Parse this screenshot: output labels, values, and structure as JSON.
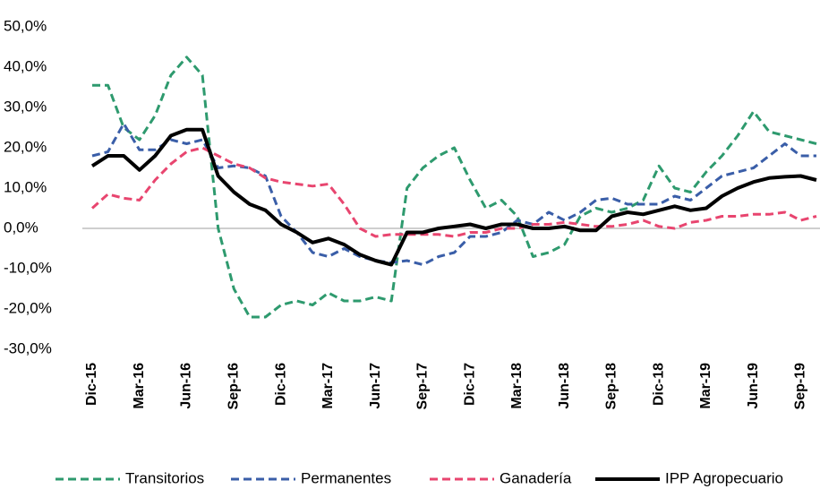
{
  "chart_data": {
    "type": "line",
    "categories": [
      "Dic-15",
      null,
      null,
      "Mar-16",
      null,
      null,
      "Jun-16",
      null,
      null,
      "Sep-16",
      null,
      null,
      "Dic-16",
      null,
      null,
      "Mar-17",
      null,
      null,
      "Jun-17",
      null,
      null,
      "Sep-17",
      null,
      null,
      "Dic-17",
      null,
      null,
      "Mar-18",
      null,
      null,
      "Jun-18",
      null,
      null,
      "Sep-18",
      null,
      null,
      "Dic-18",
      null,
      null,
      "Mar-19",
      null,
      null,
      "Jun-19",
      null,
      null,
      "Sep-19",
      null
    ],
    "series": [
      {
        "name": "Transitorios",
        "color": "#2e9a6e",
        "dashed": true,
        "values": [
          35.5,
          35.5,
          25,
          22,
          28,
          38,
          42.5,
          38,
          0,
          -15,
          -22,
          -22,
          -19,
          -18,
          -19,
          -16,
          -18,
          -18,
          -17,
          -18,
          10,
          15,
          18,
          20,
          12,
          5,
          7,
          3,
          -7,
          -6,
          -4,
          3,
          5,
          4,
          5,
          7,
          15.5,
          10,
          9,
          14,
          18,
          23,
          29,
          24,
          23,
          22,
          21
        ]
      },
      {
        "name": "Permanentes",
        "color": "#3a5ea8",
        "dashed": true,
        "values": [
          18,
          19,
          26,
          19.5,
          19.5,
          22,
          21,
          22,
          15,
          15.5,
          15,
          13,
          3,
          -1,
          -6,
          -7,
          -5,
          -7,
          -8,
          -8.5,
          -8,
          -9,
          -7,
          -6,
          -2,
          -2,
          -1,
          2,
          1,
          4,
          2,
          4,
          7,
          7.5,
          6,
          6,
          6,
          8,
          7,
          10,
          13,
          14,
          15,
          18,
          21,
          18,
          18
        ]
      },
      {
        "name": "Ganadería",
        "color": "#e8456f",
        "dashed": true,
        "values": [
          5,
          8.5,
          7.5,
          7,
          12,
          16,
          19,
          20,
          18,
          16,
          15,
          12.5,
          11.5,
          11,
          10.5,
          11,
          6,
          0,
          -2,
          -1.5,
          -1.5,
          -1.5,
          -1.5,
          -2,
          -1,
          -1,
          0,
          0,
          1,
          1,
          1.5,
          1,
          0.5,
          0.5,
          1,
          2,
          0.5,
          0,
          1.5,
          2,
          3,
          3,
          3.5,
          3.5,
          4,
          2,
          3
        ]
      },
      {
        "name": "IPP Agropecuario",
        "color": "#000000",
        "dashed": false,
        "values": [
          15.5,
          18,
          18,
          14.5,
          18,
          23,
          24.5,
          24.5,
          13,
          9,
          6,
          4.5,
          1,
          -1,
          -3.5,
          -2.5,
          -4,
          -6.5,
          -8,
          -9,
          -1,
          -1,
          0,
          0.5,
          1,
          0,
          1,
          1,
          0,
          0,
          0.5,
          -0.5,
          -0.5,
          3,
          4,
          3.5,
          4.5,
          5.5,
          4.5,
          5,
          8,
          10,
          11.5,
          12.5,
          12.8,
          13,
          12
        ]
      }
    ],
    "ylim": [
      -30,
      50
    ],
    "yticks": [
      {
        "value": -30,
        "label": "-30,0%"
      },
      {
        "value": -20,
        "label": "-20,0%"
      },
      {
        "value": -10,
        "label": "-10,0%"
      },
      {
        "value": 0,
        "label": "0,0%"
      },
      {
        "value": 10,
        "label": "10,0%"
      },
      {
        "value": 20,
        "label": "20,0%"
      },
      {
        "value": 30,
        "label": "30,0%"
      },
      {
        "value": 40,
        "label": "40,0%"
      },
      {
        "value": 50,
        "label": "50,0%"
      }
    ],
    "legend": "bottom"
  }
}
